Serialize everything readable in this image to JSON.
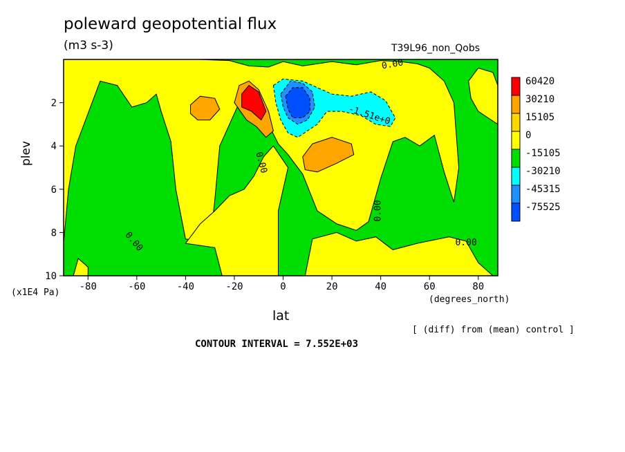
{
  "chart_data": {
    "type": "heatmap",
    "title": "poleward geopotential flux",
    "units": "(m3 s-3)",
    "run_name": "T39L96_non_Qobs",
    "xlabel": "lat",
    "xunits": "(degrees_north)",
    "ylabel": "plev",
    "yunits": "(x1E4 Pa)",
    "xlim": [
      -90,
      88
    ],
    "ylim": [
      10,
      0
    ],
    "x_ticks": [
      -80,
      -60,
      -40,
      -20,
      0,
      20,
      40,
      60,
      80
    ],
    "x_tick_labels": [
      "-80",
      "-60",
      "-40",
      "-20",
      "0",
      "20",
      "40",
      "60",
      "80"
    ],
    "y_ticks": [
      2,
      4,
      6,
      8,
      10
    ],
    "y_tick_labels": [
      "2",
      "4",
      "6",
      "8",
      "10"
    ],
    "contour_interval": "CONTOUR INTERVAL = 7.552E+03",
    "note": "[ (diff) from (mean) control ]",
    "legend": {
      "placement": "right",
      "labels": [
        "60420",
        "30210",
        "15105",
        "0",
        "-15105",
        "-30210",
        "-45315",
        "-75525"
      ],
      "colors": [
        "#ff0000",
        "#ffa500",
        "#ffd700",
        "#ffff00",
        "#00dd00",
        "#00ffff",
        "#1e90ff",
        "#0050ff"
      ]
    },
    "contour_labels": [
      {
        "text": "0.00",
        "lat": 45,
        "plev": 0.35,
        "angle": -10
      },
      {
        "text": "-1.51e+0",
        "lat": 35,
        "plev": 2.7,
        "angle": 18
      },
      {
        "text": "0.00",
        "lat": -10,
        "plev": 4.8,
        "angle": 75
      },
      {
        "text": "0.00",
        "lat": 40,
        "plev": 7.0,
        "angle": -90
      },
      {
        "text": "0.00",
        "lat": -62,
        "plev": 8.5,
        "angle": 50
      },
      {
        "text": "0.00",
        "lat": 75,
        "plev": 8.6,
        "angle": 0
      }
    ],
    "regions": [
      {
        "level": "0",
        "color": "#ffff00",
        "path": [
          [
            -90,
            8.5
          ],
          [
            -88,
            6
          ],
          [
            -85,
            4
          ],
          [
            -80,
            2.5
          ],
          [
            -75,
            1
          ],
          [
            -68,
            1.2
          ],
          [
            -62,
            2.2
          ],
          [
            -56,
            2
          ],
          [
            -52,
            1.6
          ],
          [
            -50,
            2.4
          ],
          [
            -46,
            3.8
          ],
          [
            -44,
            6
          ],
          [
            -40,
            8.3
          ],
          [
            -30,
            8.5
          ],
          [
            -28,
            6.5
          ],
          [
            -26,
            4
          ],
          [
            -22,
            3
          ],
          [
            -18,
            2
          ],
          [
            -14,
            1.6
          ],
          [
            -10,
            2.2
          ],
          [
            -6,
            3
          ],
          [
            -2,
            3.9
          ],
          [
            2,
            4.4
          ],
          [
            8,
            5.3
          ],
          [
            14,
            7
          ],
          [
            22,
            7.6
          ],
          [
            30,
            7.9
          ],
          [
            35,
            7.5
          ],
          [
            40,
            5.5
          ],
          [
            45,
            3.8
          ],
          [
            50,
            3.6
          ],
          [
            56,
            4
          ],
          [
            62,
            3.5
          ],
          [
            66,
            5.2
          ],
          [
            70,
            6.6
          ],
          [
            72,
            5
          ],
          [
            70,
            2
          ],
          [
            66,
            1
          ],
          [
            60,
            0.4
          ],
          [
            55,
            0.2
          ],
          [
            48,
            0.1
          ],
          [
            40,
            0.05
          ],
          [
            30,
            0.25
          ],
          [
            20,
            0.1
          ],
          [
            8,
            0.3
          ],
          [
            0,
            0.1
          ],
          [
            -6,
            0.35
          ],
          [
            -14,
            0.3
          ],
          [
            -22,
            0.05
          ],
          [
            -35,
            0
          ],
          [
            -90,
            0
          ]
        ]
      },
      {
        "level": "0",
        "color": "#ffff00",
        "path": [
          [
            -40,
            8.5
          ],
          [
            -28,
            8.7
          ],
          [
            -25,
            10
          ],
          [
            -2,
            10
          ],
          [
            -2,
            7
          ],
          [
            0,
            6
          ],
          [
            2,
            5
          ],
          [
            -4,
            4
          ],
          [
            -8,
            4.5
          ],
          [
            -12,
            5.4
          ],
          [
            -16,
            6
          ],
          [
            -22,
            6.3
          ],
          [
            -28,
            7
          ],
          [
            -34,
            7.6
          ]
        ]
      },
      {
        "level": "0",
        "color": "#ffff00",
        "path": [
          [
            9,
            10
          ],
          [
            12,
            8.3
          ],
          [
            22,
            8
          ],
          [
            30,
            8.4
          ],
          [
            38,
            8.2
          ],
          [
            45,
            8.8
          ],
          [
            55,
            8.5
          ],
          [
            68,
            8.2
          ],
          [
            75,
            8.4
          ],
          [
            80,
            9.4
          ],
          [
            86,
            10
          ]
        ]
      },
      {
        "level": "0",
        "color": "#ffff00",
        "path": [
          [
            76,
            1
          ],
          [
            80,
            0.4
          ],
          [
            86,
            0.6
          ],
          [
            88,
            1.2
          ],
          [
            88,
            3
          ],
          [
            84,
            2.7
          ],
          [
            80,
            2.4
          ],
          [
            77,
            1.8
          ]
        ]
      },
      {
        "level": "0",
        "color": "#ffff00",
        "path": [
          [
            -86,
            10
          ],
          [
            -84,
            9.2
          ],
          [
            -80,
            9.6
          ],
          [
            -80,
            10
          ]
        ]
      },
      {
        "level": "30210",
        "color": "#ffa500",
        "path": [
          [
            -38,
            2.1
          ],
          [
            -34,
            1.7
          ],
          [
            -28,
            1.8
          ],
          [
            -26,
            2.3
          ],
          [
            -30,
            2.8
          ],
          [
            -35,
            2.8
          ],
          [
            -38,
            2.5
          ]
        ]
      },
      {
        "level": "30210",
        "color": "#ffa500",
        "path": [
          [
            -20,
            2.0
          ],
          [
            -18,
            1.2
          ],
          [
            -14,
            1.0
          ],
          [
            -10,
            1.4
          ],
          [
            -6,
            2.4
          ],
          [
            -4,
            3.3
          ],
          [
            -7,
            3.6
          ],
          [
            -11,
            3.1
          ],
          [
            -15,
            2.8
          ]
        ]
      },
      {
        "level": "30210",
        "color": "#ffa500",
        "path": [
          [
            8,
            4.5
          ],
          [
            12,
            3.9
          ],
          [
            20,
            3.6
          ],
          [
            28,
            3.9
          ],
          [
            29,
            4.4
          ],
          [
            22,
            4.8
          ],
          [
            14,
            5.2
          ],
          [
            9,
            5.1
          ]
        ]
      },
      {
        "level": "60420",
        "color": "#ff0000",
        "path": [
          [
            -17,
            1.6
          ],
          [
            -14,
            1.2
          ],
          [
            -10,
            1.5
          ],
          [
            -7,
            2.4
          ],
          [
            -9,
            2.8
          ],
          [
            -13,
            2.4
          ],
          [
            -17,
            2.2
          ]
        ]
      },
      {
        "level": "-15105",
        "color": "#00ffff",
        "path": [
          [
            -4,
            1.2
          ],
          [
            0,
            0.9
          ],
          [
            8,
            1.0
          ],
          [
            14,
            1.3
          ],
          [
            20,
            1.6
          ],
          [
            28,
            1.7
          ],
          [
            36,
            1.5
          ],
          [
            42,
            1.9
          ],
          [
            46,
            2.7
          ],
          [
            44,
            3.1
          ],
          [
            38,
            3.0
          ],
          [
            32,
            2.6
          ],
          [
            24,
            2.4
          ],
          [
            18,
            2.4
          ],
          [
            14,
            3.0
          ],
          [
            10,
            3.3
          ],
          [
            6,
            3.6
          ],
          [
            2,
            3.4
          ],
          [
            -1,
            2.8
          ],
          [
            -3,
            2.0
          ]
        ]
      },
      {
        "level": "-30210",
        "color": "#1e90ff",
        "path": [
          [
            -1,
            1.6
          ],
          [
            3,
            1.0
          ],
          [
            8,
            1.1
          ],
          [
            12,
            1.5
          ],
          [
            13,
            2.2
          ],
          [
            10,
            2.8
          ],
          [
            6,
            3.0
          ],
          [
            2,
            2.7
          ],
          [
            0,
            2.2
          ]
        ]
      },
      {
        "level": "-45315",
        "color": "#0050ff",
        "path": [
          [
            1,
            1.7
          ],
          [
            4,
            1.3
          ],
          [
            8,
            1.3
          ],
          [
            11,
            1.8
          ],
          [
            11,
            2.4
          ],
          [
            8,
            2.7
          ],
          [
            4,
            2.7
          ],
          [
            2,
            2.3
          ]
        ]
      }
    ]
  }
}
